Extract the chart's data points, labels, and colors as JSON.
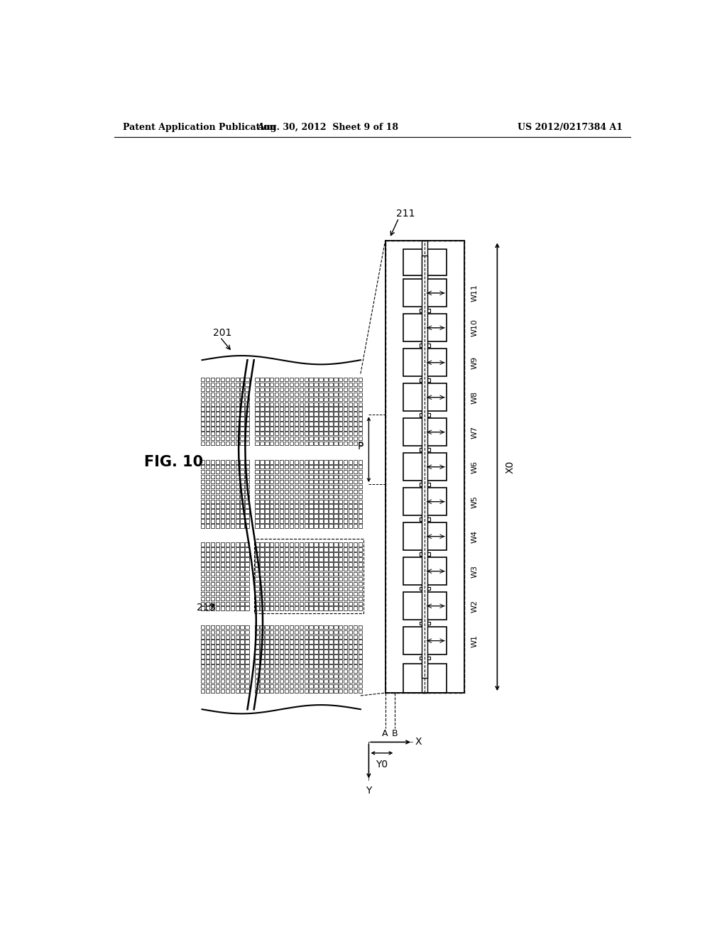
{
  "header_left": "Patent Application Publication",
  "header_mid": "Aug. 30, 2012  Sheet 9 of 18",
  "header_right": "US 2012/0217384 A1",
  "fig_label": "FIG. 10",
  "label_201": "201",
  "label_211": "211",
  "label_213": "213",
  "w_labels": [
    "W1",
    "W2",
    "W3",
    "W4",
    "W5",
    "W6",
    "W7",
    "W8",
    "W9",
    "W10",
    "W11"
  ],
  "x_label": "X0",
  "y_label": "Y0",
  "p_label": "P",
  "axis_x": "X",
  "axis_y": "Y",
  "bg_color": "#ffffff",
  "line_color": "#000000"
}
